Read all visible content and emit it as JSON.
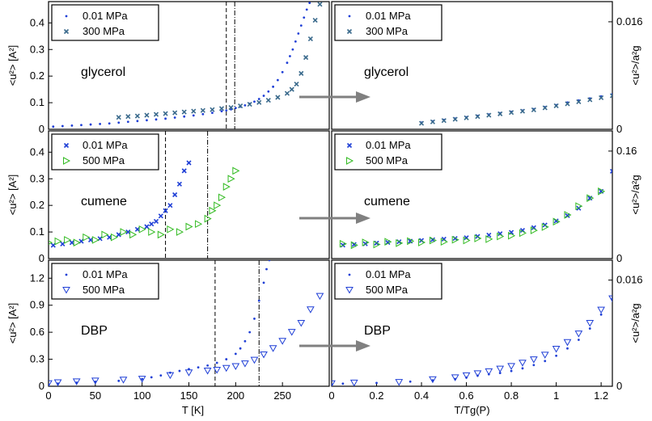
{
  "chart_data": [
    {
      "type": "scatter",
      "panel": "glycerol-temperature",
      "label": "glycerol",
      "xlim": [
        0,
        300
      ],
      "ylim": [
        0,
        0.48
      ],
      "xticks": [],
      "yticks": [
        0,
        0.1,
        0.2,
        0.3,
        0.4
      ],
      "ylabel": "<u²> [A²]",
      "vlines": {
        "dashed": 190,
        "dashdot": 199
      },
      "legend_position": "top-left",
      "series": [
        {
          "name": "0.01 MPa",
          "marker": "dot",
          "color": "#1f3fd6",
          "x": [
            5,
            15,
            25,
            35,
            45,
            55,
            65,
            75,
            85,
            95,
            105,
            115,
            125,
            135,
            145,
            155,
            165,
            175,
            185,
            190,
            195,
            200,
            205,
            210,
            215,
            220,
            225,
            230,
            235,
            240,
            245,
            250,
            255,
            258,
            261,
            264,
            267,
            270,
            273,
            276,
            279,
            282
          ],
          "y": [
            0.01,
            0.012,
            0.014,
            0.016,
            0.018,
            0.02,
            0.022,
            0.025,
            0.028,
            0.031,
            0.034,
            0.037,
            0.04,
            0.044,
            0.048,
            0.052,
            0.057,
            0.062,
            0.068,
            0.071,
            0.075,
            0.08,
            0.085,
            0.09,
            0.096,
            0.104,
            0.114,
            0.126,
            0.142,
            0.16,
            0.185,
            0.215,
            0.25,
            0.275,
            0.3,
            0.33,
            0.36,
            0.39,
            0.42,
            0.45,
            0.475,
            0.5
          ]
        },
        {
          "name": "300 MPa",
          "marker": "x",
          "color": "#3a6a8c",
          "x": [
            75,
            85,
            95,
            105,
            115,
            125,
            135,
            145,
            155,
            165,
            175,
            185,
            195,
            205,
            215,
            225,
            235,
            245,
            255,
            260,
            265,
            270,
            275,
            280,
            285,
            290
          ],
          "y": [
            0.045,
            0.048,
            0.05,
            0.053,
            0.056,
            0.059,
            0.062,
            0.065,
            0.068,
            0.071,
            0.074,
            0.078,
            0.082,
            0.088,
            0.094,
            0.101,
            0.109,
            0.12,
            0.135,
            0.15,
            0.17,
            0.21,
            0.27,
            0.34,
            0.41,
            0.47
          ]
        }
      ]
    },
    {
      "type": "scatter",
      "panel": "glycerol-scaled",
      "label": "glycerol",
      "xlim": [
        0,
        1.25
      ],
      "ylim": [
        0,
        0.019
      ],
      "xticks": [],
      "yticks": [
        0,
        0.016
      ],
      "ylabel": "<u²>/a²g",
      "legend_position": "top-left",
      "series": [
        {
          "name": "0.01 MPa",
          "marker": "dot",
          "color": "#1f3fd6",
          "x": [
            0.4,
            0.45,
            0.5,
            0.55,
            0.6,
            0.65,
            0.7,
            0.75,
            0.8,
            0.85,
            0.9,
            0.95,
            1.0,
            1.05,
            1.1,
            1.15,
            1.2,
            1.25
          ],
          "y": [
            0.001,
            0.0012,
            0.0014,
            0.0016,
            0.0018,
            0.002,
            0.0022,
            0.0024,
            0.0026,
            0.0028,
            0.003,
            0.0033,
            0.0036,
            0.004,
            0.0043,
            0.0046,
            0.0049,
            0.0052
          ]
        },
        {
          "name": "300 MPa",
          "marker": "x",
          "color": "#3a6a8c",
          "x": [
            0.4,
            0.45,
            0.5,
            0.55,
            0.6,
            0.65,
            0.7,
            0.75,
            0.8,
            0.85,
            0.9,
            0.95,
            1.0,
            1.05,
            1.1,
            1.15,
            1.2,
            1.25
          ],
          "y": [
            0.0009,
            0.0011,
            0.0013,
            0.0015,
            0.0017,
            0.0019,
            0.0021,
            0.0023,
            0.0025,
            0.0027,
            0.0029,
            0.0032,
            0.0035,
            0.0038,
            0.0041,
            0.0044,
            0.0047,
            0.005
          ]
        }
      ]
    },
    {
      "type": "scatter",
      "panel": "cumene-temperature",
      "label": "cumene",
      "xlim": [
        0,
        300
      ],
      "ylim": [
        0,
        0.48
      ],
      "xticks": [],
      "yticks": [
        0,
        0.1,
        0.2,
        0.3,
        0.4
      ],
      "ylabel": "<u²> [A²]",
      "vlines": {
        "dashed": 125,
        "dashdot": 170
      },
      "legend_position": "top-left",
      "series": [
        {
          "name": "0.01 MPa",
          "marker": "x",
          "color": "#1f3fd6",
          "x": [
            5,
            15,
            25,
            35,
            45,
            55,
            65,
            75,
            85,
            95,
            105,
            110,
            115,
            120,
            125,
            130,
            135,
            140,
            145,
            150
          ],
          "y": [
            0.05,
            0.055,
            0.06,
            0.065,
            0.07,
            0.075,
            0.08,
            0.09,
            0.1,
            0.11,
            0.12,
            0.13,
            0.14,
            0.16,
            0.18,
            0.2,
            0.24,
            0.28,
            0.33,
            0.36
          ]
        },
        {
          "name": "500 MPa",
          "marker": "triangle-right",
          "color": "#33bb22",
          "x": [
            0,
            10,
            20,
            30,
            40,
            50,
            60,
            70,
            80,
            90,
            100,
            110,
            120,
            130,
            140,
            150,
            160,
            170,
            175,
            180,
            185,
            190,
            195,
            200
          ],
          "y": [
            0.06,
            0.065,
            0.07,
            0.06,
            0.08,
            0.07,
            0.09,
            0.08,
            0.1,
            0.09,
            0.11,
            0.1,
            0.09,
            0.11,
            0.1,
            0.12,
            0.13,
            0.15,
            0.18,
            0.2,
            0.23,
            0.27,
            0.3,
            0.33
          ]
        }
      ]
    },
    {
      "type": "scatter",
      "panel": "cumene-scaled",
      "label": "cumene",
      "xlim": [
        0,
        1.25
      ],
      "ylim": [
        0,
        0.19
      ],
      "xticks": [],
      "yticks": [
        0,
        0.16
      ],
      "ylabel": "<u²>/a²g",
      "legend_position": "top-left",
      "series": [
        {
          "name": "0.01 MPa",
          "marker": "x",
          "color": "#1f3fd6",
          "x": [
            0.05,
            0.1,
            0.15,
            0.2,
            0.25,
            0.3,
            0.35,
            0.4,
            0.45,
            0.5,
            0.55,
            0.6,
            0.65,
            0.7,
            0.75,
            0.8,
            0.85,
            0.9,
            0.95,
            1.0,
            1.05,
            1.1,
            1.15,
            1.2,
            1.25
          ],
          "y": [
            0.02,
            0.021,
            0.022,
            0.023,
            0.024,
            0.025,
            0.026,
            0.027,
            0.028,
            0.029,
            0.03,
            0.031,
            0.033,
            0.035,
            0.037,
            0.039,
            0.042,
            0.046,
            0.05,
            0.056,
            0.064,
            0.075,
            0.09,
            0.1,
            0.13
          ]
        },
        {
          "name": "500 MPa",
          "marker": "triangle-right",
          "color": "#33bb22",
          "x": [
            0.05,
            0.1,
            0.15,
            0.2,
            0.25,
            0.3,
            0.35,
            0.4,
            0.45,
            0.5,
            0.55,
            0.6,
            0.65,
            0.7,
            0.75,
            0.8,
            0.85,
            0.9,
            0.95,
            1.0,
            1.05,
            1.1,
            1.15,
            1.2
          ],
          "y": [
            0.022,
            0.02,
            0.024,
            0.021,
            0.025,
            0.023,
            0.026,
            0.024,
            0.027,
            0.025,
            0.028,
            0.027,
            0.03,
            0.029,
            0.033,
            0.034,
            0.038,
            0.042,
            0.047,
            0.055,
            0.065,
            0.078,
            0.09,
            0.1
          ]
        }
      ]
    },
    {
      "type": "scatter",
      "panel": "dbp-temperature",
      "label": "DBP",
      "xlim": [
        0,
        300
      ],
      "ylim": [
        0,
        1.4
      ],
      "xticks": [
        0,
        50,
        100,
        150,
        200,
        250
      ],
      "yticks": [
        0,
        0.3,
        0.6,
        0.9,
        1.2
      ],
      "xlabel": "T  [K]",
      "ylabel": "<u²> [A²]",
      "vlines": {
        "dashed": 178,
        "dashdot": 225
      },
      "legend_position": "top-left",
      "series": [
        {
          "name": "0.01 MPa",
          "marker": "dot",
          "color": "#1f3fd6",
          "x": [
            0,
            10,
            30,
            50,
            75,
            100,
            110,
            120,
            130,
            140,
            150,
            160,
            170,
            180,
            190,
            200,
            205,
            210,
            215,
            220,
            225,
            230,
            233,
            236
          ],
          "y": [
            0.02,
            0.03,
            0.04,
            0.05,
            0.06,
            0.08,
            0.1,
            0.12,
            0.15,
            0.17,
            0.19,
            0.21,
            0.23,
            0.26,
            0.3,
            0.36,
            0.42,
            0.5,
            0.6,
            0.75,
            0.95,
            1.15,
            1.3,
            1.4
          ]
        },
        {
          "name": "500 MPa",
          "marker": "triangle-down",
          "color": "#1f3fd6",
          "x": [
            0,
            10,
            30,
            50,
            80,
            100,
            130,
            150,
            170,
            180,
            190,
            200,
            210,
            220,
            230,
            240,
            250,
            260,
            270,
            280,
            290
          ],
          "y": [
            0.03,
            0.04,
            0.05,
            0.06,
            0.07,
            0.08,
            0.12,
            0.15,
            0.17,
            0.18,
            0.2,
            0.22,
            0.25,
            0.29,
            0.35,
            0.42,
            0.5,
            0.6,
            0.7,
            0.85,
            1.0
          ]
        }
      ]
    },
    {
      "type": "scatter",
      "panel": "dbp-scaled",
      "label": "DBP",
      "xlim": [
        0,
        1.25
      ],
      "ylim": [
        0,
        0.019
      ],
      "xticks": [
        0,
        0.2,
        0.4,
        0.6,
        0.8,
        1,
        1.2
      ],
      "yticks": [
        0,
        0.016
      ],
      "xlabel": "T/Tg(P)",
      "ylabel": "<u²>/a²g",
      "legend_position": "top-left",
      "series": [
        {
          "name": "0.01 MPa",
          "marker": "dot",
          "color": "#1f3fd6",
          "x": [
            0.0,
            0.05,
            0.2,
            0.35,
            0.45,
            0.55,
            0.6,
            0.65,
            0.7,
            0.75,
            0.8,
            0.85,
            0.9,
            0.95,
            1.0,
            1.05,
            1.1,
            1.15,
            1.2,
            1.25
          ],
          "y": [
            0.0003,
            0.0004,
            0.0005,
            0.0007,
            0.0009,
            0.0011,
            0.0013,
            0.0016,
            0.0018,
            0.002,
            0.0023,
            0.0027,
            0.0032,
            0.0038,
            0.0046,
            0.0057,
            0.007,
            0.0087,
            0.0108,
            0.0132
          ]
        },
        {
          "name": "500 MPa",
          "marker": "triangle-down",
          "color": "#1f3fd6",
          "x": [
            0.0,
            0.1,
            0.3,
            0.45,
            0.55,
            0.6,
            0.65,
            0.7,
            0.75,
            0.8,
            0.85,
            0.9,
            0.95,
            1.0,
            1.05,
            1.1,
            1.15,
            1.2,
            1.25
          ],
          "y": [
            0.0004,
            0.0005,
            0.0006,
            0.001,
            0.0013,
            0.0016,
            0.0019,
            0.0022,
            0.0026,
            0.003,
            0.0035,
            0.004,
            0.0047,
            0.0056,
            0.0066,
            0.0079,
            0.0095,
            0.0115,
            0.0132
          ]
        }
      ]
    }
  ],
  "arrow_color": "#808080"
}
